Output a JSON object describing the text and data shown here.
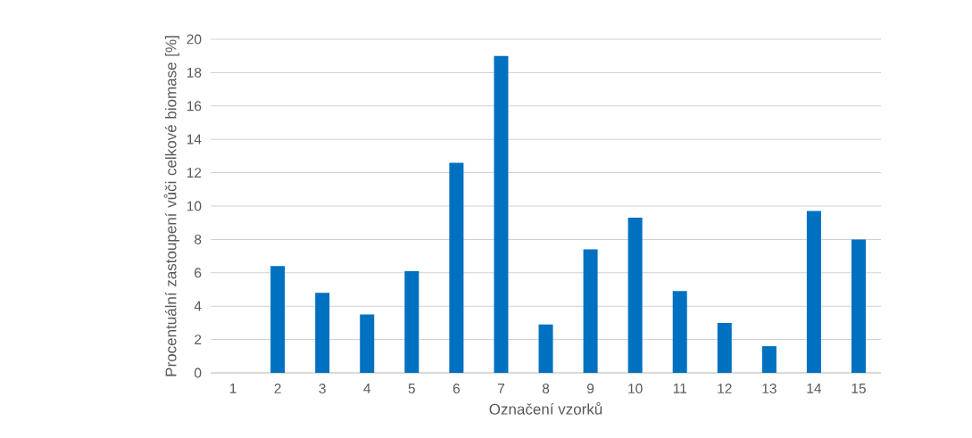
{
  "chart_data": {
    "type": "bar",
    "xlabel": "Označení vzorků",
    "ylabel": "Procentuální zastoupení vůči celkové biomase [%]",
    "categories": [
      "1",
      "2",
      "3",
      "4",
      "5",
      "6",
      "7",
      "8",
      "9",
      "10",
      "11",
      "12",
      "13",
      "14",
      "15"
    ],
    "values": [
      0,
      6.4,
      4.8,
      3.5,
      6.1,
      12.6,
      19.0,
      2.9,
      7.4,
      9.3,
      4.9,
      3.0,
      1.6,
      9.7,
      8.0
    ],
    "color": "#0070c0",
    "ylim": [
      0,
      20
    ],
    "yticks": [
      0,
      2,
      4,
      6,
      8,
      10,
      12,
      14,
      16,
      18,
      20
    ],
    "grid": "y"
  }
}
